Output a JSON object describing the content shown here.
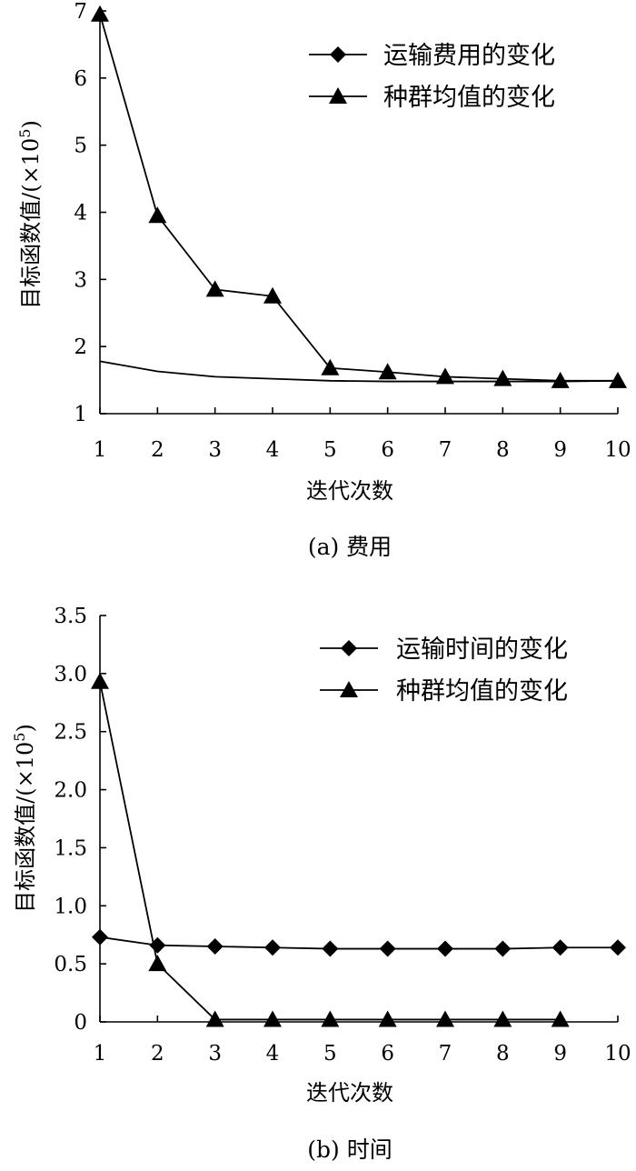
{
  "chart_data": [
    {
      "type": "line",
      "caption": "(a) 费用",
      "xlabel": "迭代次数",
      "ylabel": "目标函数值/(×10",
      "ylabel_sup": "5",
      "ylabel_close": ")",
      "x": [
        1,
        2,
        3,
        4,
        5,
        6,
        7,
        8,
        9,
        10
      ],
      "xlim": [
        1,
        10
      ],
      "ylim": [
        1,
        7
      ],
      "yticks": [
        1,
        2,
        3,
        4,
        5,
        6,
        7
      ],
      "ytick_labels": [
        "1",
        "2",
        "3",
        "4",
        "5",
        "6",
        "7"
      ],
      "legend_position": "top-right",
      "series": [
        {
          "name": "运输费用的变化",
          "marker": "diamond",
          "show_markers": false,
          "values": [
            1.78,
            1.63,
            1.55,
            1.52,
            1.49,
            1.48,
            1.48,
            1.48,
            1.48,
            1.49
          ]
        },
        {
          "name": "种群均值的变化",
          "marker": "triangle",
          "show_markers": true,
          "values": [
            6.95,
            3.95,
            2.85,
            2.75,
            1.68,
            1.62,
            1.55,
            1.52,
            1.49,
            1.49
          ]
        }
      ]
    },
    {
      "type": "line",
      "caption": "(b) 时间",
      "xlabel": "迭代次数",
      "ylabel": "目标函数值/(×10",
      "ylabel_sup": "5",
      "ylabel_close": ")",
      "x": [
        1,
        2,
        3,
        4,
        5,
        6,
        7,
        8,
        9,
        10
      ],
      "xlim": [
        1,
        10
      ],
      "ylim": [
        0,
        3.5
      ],
      "yticks": [
        0,
        0.5,
        1,
        1.5,
        2,
        2.5,
        3,
        3.5
      ],
      "ytick_labels": [
        "0",
        "0.5",
        "1.0",
        "1.5",
        "2.0",
        "2.5",
        "3.0",
        "3.5"
      ],
      "legend_position": "top-right",
      "series": [
        {
          "name": "运输时间的变化",
          "marker": "diamond",
          "show_markers": true,
          "values": [
            0.73,
            0.66,
            0.65,
            0.64,
            0.63,
            0.63,
            0.63,
            0.63,
            0.64,
            0.64
          ]
        },
        {
          "name": "种群均值的变化",
          "marker": "triangle",
          "show_markers": true,
          "values": [
            2.93,
            0.5,
            0.02,
            0.02,
            0.02,
            0.02,
            0.02,
            0.02,
            0.02,
            null
          ]
        }
      ]
    }
  ]
}
